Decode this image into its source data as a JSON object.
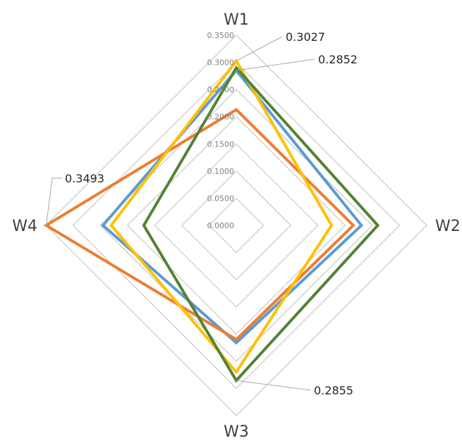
{
  "chart_data": {
    "type": "radar",
    "axes": [
      "W1",
      "W2",
      "W3",
      "W4"
    ],
    "rlim": [
      0,
      0.35
    ],
    "ticks": [
      "0.0000",
      "0.0500",
      "0.1000",
      "0.1500",
      "0.2000",
      "0.2500",
      "0.3000",
      "0.3500"
    ],
    "tick_values": [
      0,
      0.05,
      0.1,
      0.15,
      0.2,
      0.25,
      0.3,
      0.35
    ],
    "grid": true,
    "legend": "none",
    "series": [
      {
        "color": "#5B9BD5",
        "values": [
          0.2852,
          0.23,
          0.216,
          0.245
        ]
      },
      {
        "color": "#ED7D31",
        "values": [
          0.213,
          0.215,
          0.21,
          0.3493
        ]
      },
      {
        "color": "#FFC000",
        "values": [
          0.3027,
          0.175,
          0.27,
          0.23
        ]
      },
      {
        "color": "#548235",
        "values": [
          0.29,
          0.26,
          0.2855,
          0.17
        ]
      }
    ],
    "annotations": [
      {
        "text": "0.3027",
        "series": 2,
        "axis": 0
      },
      {
        "text": "0.2852",
        "series": 0,
        "axis": 0
      },
      {
        "text": "0.3493",
        "series": 1,
        "axis": 3
      },
      {
        "text": "0.2855",
        "series": 3,
        "axis": 2
      }
    ]
  }
}
